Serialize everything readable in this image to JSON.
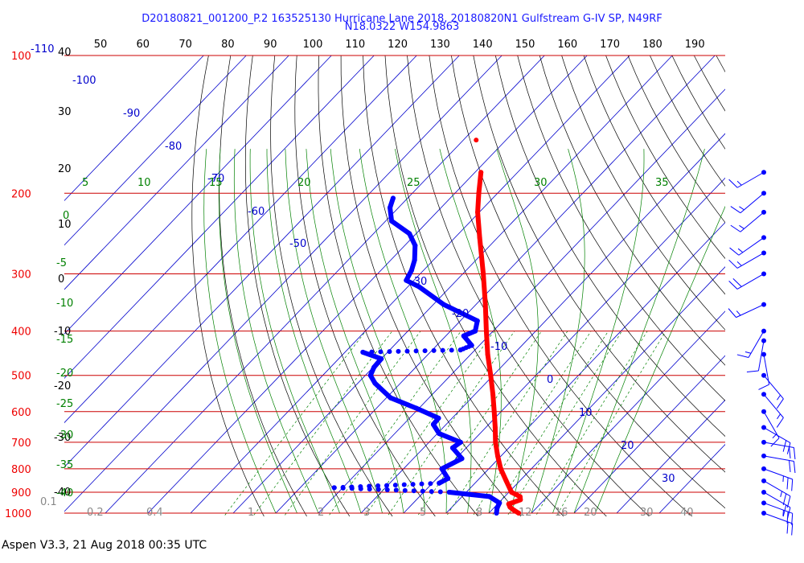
{
  "header": {
    "line1": "D20180821_001200_P.2 163525130 Hurricane Lane 2018, 20180820N1 Gulfstream G-IV SP, N49RF",
    "line2": "N18.0322 W154.9863"
  },
  "footer": {
    "text": "Aspen V3.3, 21 Aug 2018  00:35 UTC"
  },
  "colors": {
    "isobar": "#cc0000",
    "pressure_label": "#ee0000",
    "isotherm": "#0000cc",
    "dry_adiabat": "#000000",
    "moist_adiabat": "#008000",
    "mixing_ratio": "#008000",
    "temperature_trace": "#ff0000",
    "dewpoint_trace": "#0000ff",
    "wind_barb": "#0000ff",
    "secondary_text": "#888888"
  },
  "chart_data": {
    "type": "skew-t",
    "pressure_axis_labels": [
      "100",
      "200",
      "300",
      "400",
      "500",
      "600",
      "700",
      "800",
      "900",
      "1000"
    ],
    "top_corner_label": "-110",
    "top_temperature_scale": [
      "50",
      "60",
      "70",
      "80",
      "90",
      "100",
      "110",
      "120",
      "130",
      "140",
      "150",
      "160",
      "170",
      "180",
      "190"
    ],
    "left_temperature_scale": [
      "40",
      "30",
      "20",
      "10",
      "0",
      "-10",
      "-20",
      "-30",
      "-40"
    ],
    "isotherm_labels": [
      "-100",
      "-90",
      "-80",
      "-70",
      "-60",
      "-50",
      "-30",
      "-20",
      "-10",
      "0",
      "10",
      "20",
      "30"
    ],
    "moist_adiabat_labels": [
      "5",
      "10",
      "15",
      "20",
      "25",
      "30",
      "35"
    ],
    "moist_left_labels": [
      "0",
      "-5",
      "-10",
      "-15",
      "-20",
      "-25",
      "-30",
      "-35",
      "-40"
    ],
    "mixing_ratio_labels": [
      "0.1",
      "0.2",
      "0.4",
      "1",
      "2",
      "3",
      "5",
      "8",
      "12",
      "16",
      "20",
      "30",
      "40"
    ],
    "temperature_profile": [
      {
        "p": 1000,
        "t": 27
      },
      {
        "p": 985,
        "t": 25.2
      },
      {
        "p": 970,
        "t": 23.6
      },
      {
        "p": 955,
        "t": 22.6
      },
      {
        "p": 935,
        "t": 24.4
      },
      {
        "p": 920,
        "t": 23.6
      },
      {
        "p": 900,
        "t": 20.6
      },
      {
        "p": 850,
        "t": 16.8
      },
      {
        "p": 800,
        "t": 12.8
      },
      {
        "p": 750,
        "t": 9.2
      },
      {
        "p": 700,
        "t": 5.6
      },
      {
        "p": 650,
        "t": 2.2
      },
      {
        "p": 600,
        "t": -1.6
      },
      {
        "p": 550,
        "t": -5.8
      },
      {
        "p": 500,
        "t": -10.6
      },
      {
        "p": 450,
        "t": -16
      },
      {
        "p": 400,
        "t": -21.6
      },
      {
        "p": 350,
        "t": -27.8
      },
      {
        "p": 300,
        "t": -35.2
      },
      {
        "p": 250,
        "t": -44.2
      },
      {
        "p": 220,
        "t": -50.4
      },
      {
        "p": 200,
        "t": -54.4
      },
      {
        "p": 180,
        "t": -58.6
      }
    ],
    "temperature_isolated_point": {
      "p": 153,
      "t": -67
    },
    "dewpoint_profile": [
      {
        "p": 1000,
        "td": 21.8
      },
      {
        "p": 975,
        "td": 20.8
      },
      {
        "p": 950,
        "td": 20.2
      },
      {
        "p": 920,
        "td": 16.4
      },
      {
        "p": 900,
        "td": 6
      },
      {
        "p": 880,
        "td": -22,
        "dotted": true
      },
      {
        "p": 860,
        "td": 1.6
      },
      {
        "p": 840,
        "td": 2.6
      },
      {
        "p": 800,
        "td": -1
      },
      {
        "p": 760,
        "td": 1.4
      },
      {
        "p": 720,
        "td": -3.2
      },
      {
        "p": 700,
        "td": -2.6
      },
      {
        "p": 670,
        "td": -9.6
      },
      {
        "p": 640,
        "td": -13
      },
      {
        "p": 620,
        "td": -13.2
      },
      {
        "p": 590,
        "td": -20.6
      },
      {
        "p": 560,
        "td": -29
      },
      {
        "p": 520,
        "td": -36
      },
      {
        "p": 500,
        "td": -38.8
      },
      {
        "p": 480,
        "td": -39.8
      },
      {
        "p": 460,
        "td": -40
      },
      {
        "p": 445,
        "td": -45.8
      },
      {
        "p": 440,
        "td": -23.4,
        "dotted": true
      },
      {
        "p": 430,
        "td": -21.8
      },
      {
        "p": 410,
        "td": -25.8
      },
      {
        "p": 400,
        "td": -24.2
      },
      {
        "p": 380,
        "td": -26
      },
      {
        "p": 350,
        "td": -37.6
      },
      {
        "p": 320,
        "td": -47.4
      },
      {
        "p": 310,
        "td": -51.8
      },
      {
        "p": 295,
        "td": -52.8
      },
      {
        "p": 280,
        "td": -54.4
      },
      {
        "p": 260,
        "td": -57.6
      },
      {
        "p": 245,
        "td": -61.6
      },
      {
        "p": 230,
        "td": -68.6
      },
      {
        "p": 215,
        "td": -72
      },
      {
        "p": 205,
        "td": -73.4
      }
    ],
    "wind_profile": [
      {
        "p": 1000,
        "speed_kt": 20,
        "dir": 110
      },
      {
        "p": 950,
        "speed_kt": 25,
        "dir": 110
      },
      {
        "p": 900,
        "speed_kt": 20,
        "dir": 120
      },
      {
        "p": 850,
        "speed_kt": 25,
        "dir": 120
      },
      {
        "p": 800,
        "speed_kt": 25,
        "dir": 110
      },
      {
        "p": 750,
        "speed_kt": 20,
        "dir": 100
      },
      {
        "p": 700,
        "speed_kt": 20,
        "dir": 100
      },
      {
        "p": 650,
        "speed_kt": 20,
        "dir": 120
      },
      {
        "p": 600,
        "speed_kt": 15,
        "dir": 150
      },
      {
        "p": 550,
        "speed_kt": 15,
        "dir": 140
      },
      {
        "p": 500,
        "speed_kt": 15,
        "dir": 140
      },
      {
        "p": 450,
        "speed_kt": 10,
        "dir": 170
      },
      {
        "p": 420,
        "speed_kt": 10,
        "dir": 190
      },
      {
        "p": 400,
        "speed_kt": 15,
        "dir": 210
      },
      {
        "p": 350,
        "speed_kt": 15,
        "dir": 245
      },
      {
        "p": 300,
        "speed_kt": 20,
        "dir": 240
      },
      {
        "p": 270,
        "speed_kt": 15,
        "dir": 240
      },
      {
        "p": 250,
        "speed_kt": 15,
        "dir": 235
      },
      {
        "p": 220,
        "speed_kt": 15,
        "dir": 230
      },
      {
        "p": 200,
        "speed_kt": 15,
        "dir": 230
      },
      {
        "p": 180,
        "speed_kt": 15,
        "dir": 240
      }
    ]
  }
}
